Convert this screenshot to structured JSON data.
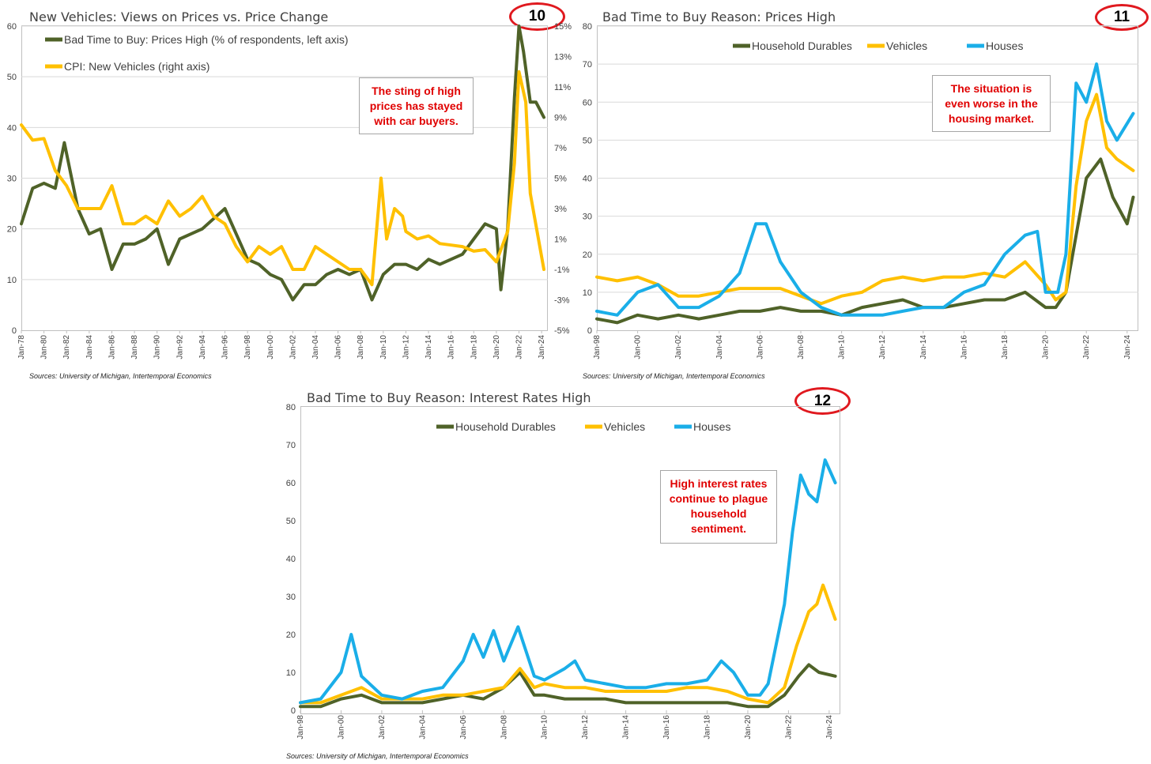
{
  "charts": [
    {
      "id": 10,
      "badge": "10",
      "title": "New Vehicles: Views on Prices vs. Price Change",
      "source": "Sources: University of Michigan, Intertemporal Economics",
      "callout": "The sting of high prices has stayed with car buyers.",
      "legend": [
        "Bad Time to Buy: Prices High (% of respondents, left axis)",
        "CPI: New Vehicles (right axis)"
      ],
      "left_ticks": [
        "0",
        "10",
        "20",
        "30",
        "40",
        "50",
        "60"
      ],
      "right_ticks": [
        "-5%",
        "-3%",
        "-1%",
        "1%",
        "3%",
        "5%",
        "7%",
        "9%",
        "11%",
        "13%",
        "15%"
      ],
      "x_ticks": [
        "Jan-78",
        "Jan-80",
        "Jan-82",
        "Jan-84",
        "Jan-86",
        "Jan-88",
        "Jan-90",
        "Jan-92",
        "Jan-94",
        "Jan-96",
        "Jan-98",
        "Jan-00",
        "Jan-02",
        "Jan-04",
        "Jan-06",
        "Jan-08",
        "Jan-10",
        "Jan-12",
        "Jan-14",
        "Jan-16",
        "Jan-18",
        "Jan-20",
        "Jan-22",
        "Jan-24"
      ]
    },
    {
      "id": 11,
      "badge": "11",
      "title": "Bad Time to Buy Reason: Prices High",
      "source": "Sources: University of Michigan, Intertemporal Economics",
      "callout": "The situation is even worse in the housing market.",
      "legend": [
        "Household Durables",
        "Vehicles",
        "Houses"
      ],
      "left_ticks": [
        "0",
        "10",
        "20",
        "30",
        "40",
        "50",
        "60",
        "70",
        "80"
      ],
      "x_ticks": [
        "Jan-98",
        "Jan-00",
        "Jan-02",
        "Jan-04",
        "Jan-06",
        "Jan-08",
        "Jan-10",
        "Jan-12",
        "Jan-14",
        "Jan-16",
        "Jan-18",
        "Jan-20",
        "Jan-22",
        "Jan-24"
      ]
    },
    {
      "id": 12,
      "badge": "12",
      "title": "Bad Time to Buy Reason: Interest Rates High",
      "source": "Sources: University of Michigan, Intertemporal Economics",
      "callout": "High interest rates continue to plague household sentiment.",
      "legend": [
        "Household Durables",
        "Vehicles",
        "Houses"
      ],
      "left_ticks": [
        "0",
        "10",
        "20",
        "30",
        "40",
        "50",
        "60",
        "70",
        "80"
      ],
      "x_ticks": [
        "Jan-98",
        "Jan-00",
        "Jan-02",
        "Jan-04",
        "Jan-06",
        "Jan-08",
        "Jan-10",
        "Jan-12",
        "Jan-14",
        "Jan-16",
        "Jan-18",
        "Jan-20",
        "Jan-22",
        "Jan-24"
      ]
    }
  ],
  "colors": {
    "durables": "#4f6228",
    "vehicles": "#ffc000",
    "houses": "#1aaee8",
    "badge_border": "#e0191f",
    "callout_text": "#e00000",
    "gridline": "#d9d9d9"
  },
  "chart_data": [
    {
      "type": "line",
      "title": "New Vehicles: Views on Prices vs. Price Change",
      "x_range": [
        "Jan-78",
        "Jan-24"
      ],
      "left_ylim": [
        0,
        60
      ],
      "right_ylim": [
        -5,
        15
      ],
      "right_unit": "%",
      "grid": true,
      "legend_position": "top-left",
      "series": [
        {
          "name": "Bad Time to Buy: Prices High (% of respondents, left axis)",
          "axis": "left",
          "x": [
            1978.0,
            1979.0,
            1980.0,
            1981.0,
            1981.8,
            1983.0,
            1984.0,
            1985.0,
            1986.0,
            1987.0,
            1988.0,
            1989.0,
            1990.0,
            1991.0,
            1992.0,
            1993.0,
            1994.0,
            1995.0,
            1996.0,
            1997.0,
            1998.0,
            1999.0,
            2000.0,
            2001.0,
            2002.0,
            2003.0,
            2004.0,
            2005.0,
            2006.0,
            2007.0,
            2008.0,
            2009.0,
            2010.0,
            2011.0,
            2012.0,
            2013.0,
            2014.0,
            2015.0,
            2016.0,
            2017.0,
            2018.0,
            2019.0,
            2020.0,
            2020.4,
            2021.0,
            2021.6,
            2022.0,
            2022.4,
            2023.0,
            2023.5,
            2024.2
          ],
          "y": [
            21,
            28,
            29,
            28,
            37,
            24,
            19,
            20,
            12,
            17,
            17,
            18,
            20,
            13,
            18,
            19,
            20,
            22,
            24,
            19,
            14,
            13,
            11,
            10,
            6,
            9,
            9,
            11,
            12,
            11,
            12,
            6,
            11,
            13,
            13,
            12,
            14,
            13,
            14,
            15,
            18,
            21,
            20,
            8,
            20,
            46,
            60,
            55,
            45,
            45,
            42
          ]
        },
        {
          "name": "CPI: New Vehicles (right axis)",
          "axis": "right",
          "x": [
            1978.0,
            1979.0,
            1980.0,
            1981.0,
            1982.0,
            1983.0,
            1984.0,
            1985.0,
            1986.0,
            1987.0,
            1988.0,
            1989.0,
            1990.0,
            1991.0,
            1992.0,
            1993.0,
            1994.0,
            1995.0,
            1996.0,
            1997.0,
            1998.0,
            1999.0,
            2000.0,
            2001.0,
            2002.0,
            2003.0,
            2004.0,
            2005.0,
            2006.0,
            2007.0,
            2008.0,
            2009.0,
            2009.8,
            2010.3,
            2011.0,
            2011.7,
            2012.0,
            2013.0,
            2014.0,
            2015.0,
            2016.0,
            2017.0,
            2018.0,
            2019.0,
            2020.0,
            2021.0,
            2021.6,
            2022.0,
            2022.6,
            2023.0,
            2023.6,
            2024.2
          ],
          "y": [
            8.5,
            7.5,
            7.6,
            5.5,
            4.5,
            3,
            3,
            3,
            4.5,
            2,
            2,
            2.5,
            2,
            3.5,
            2.5,
            3,
            3.8,
            2.5,
            2,
            0.5,
            -0.5,
            0.5,
            0,
            0.5,
            -1,
            -1,
            0.5,
            0,
            -0.5,
            -1,
            -1,
            -2,
            5,
            1,
            3,
            2.5,
            1.5,
            1,
            1.2,
            0.7,
            0.6,
            0.5,
            0.2,
            0.3,
            -0.5,
            1.5,
            6,
            12,
            10,
            4,
            1.5,
            -1
          ]
        }
      ]
    },
    {
      "type": "line",
      "title": "Bad Time to Buy Reason: Prices High",
      "x_range": [
        "Jan-98",
        "Jan-24"
      ],
      "ylim": [
        0,
        80
      ],
      "grid": true,
      "legend_position": "top",
      "series": [
        {
          "name": "Household Durables",
          "x": [
            1998.0,
            1999.0,
            2000.0,
            2001.0,
            2002.0,
            2003.0,
            2004.0,
            2005.0,
            2006.0,
            2007.0,
            2008.0,
            2009.0,
            2010.0,
            2011.0,
            2012.0,
            2013.0,
            2014.0,
            2015.0,
            2016.0,
            2017.0,
            2018.0,
            2019.0,
            2020.0,
            2020.5,
            2021.0,
            2021.5,
            2022.0,
            2022.7,
            2023.3,
            2024.0,
            2024.3
          ],
          "y": [
            3,
            2,
            4,
            3,
            4,
            3,
            4,
            5,
            5,
            6,
            5,
            5,
            4,
            6,
            7,
            8,
            6,
            6,
            7,
            8,
            8,
            10,
            6,
            6,
            10,
            25,
            40,
            45,
            35,
            28,
            35
          ]
        },
        {
          "name": "Vehicles",
          "x": [
            1998.0,
            1999.0,
            2000.0,
            2001.0,
            2002.0,
            2003.0,
            2004.0,
            2005.0,
            2006.0,
            2007.0,
            2008.0,
            2009.0,
            2010.0,
            2011.0,
            2012.0,
            2013.0,
            2014.0,
            2015.0,
            2016.0,
            2017.0,
            2018.0,
            2019.0,
            2020.0,
            2020.5,
            2021.0,
            2021.5,
            2022.0,
            2022.5,
            2023.0,
            2023.5,
            2024.3
          ],
          "y": [
            14,
            13,
            14,
            12,
            9,
            9,
            10,
            11,
            11,
            11,
            9,
            7,
            9,
            10,
            13,
            14,
            13,
            14,
            14,
            15,
            14,
            18,
            12,
            8,
            10,
            38,
            55,
            62,
            48,
            45,
            42
          ]
        },
        {
          "name": "Houses",
          "x": [
            1998.0,
            1999.0,
            2000.0,
            2001.0,
            2002.0,
            2003.0,
            2004.0,
            2005.0,
            2005.8,
            2006.3,
            2007.0,
            2008.0,
            2009.0,
            2010.0,
            2011.0,
            2012.0,
            2013.0,
            2014.0,
            2015.0,
            2016.0,
            2017.0,
            2018.0,
            2019.0,
            2019.6,
            2020.0,
            2020.6,
            2021.0,
            2021.5,
            2022.0,
            2022.5,
            2023.0,
            2023.5,
            2024.3
          ],
          "y": [
            5,
            4,
            10,
            12,
            6,
            6,
            9,
            15,
            28,
            28,
            18,
            10,
            6,
            4,
            4,
            4,
            5,
            6,
            6,
            10,
            12,
            20,
            25,
            26,
            10,
            10,
            20,
            65,
            60,
            70,
            55,
            50,
            57
          ]
        }
      ]
    },
    {
      "type": "line",
      "title": "Bad Time to Buy Reason: Interest Rates High",
      "x_range": [
        "Jan-98",
        "Jan-24"
      ],
      "ylim": [
        0,
        80
      ],
      "grid": false,
      "legend_position": "top",
      "series": [
        {
          "name": "Household Durables",
          "x": [
            1998.0,
            1999.0,
            2000.0,
            2001.0,
            2002.0,
            2003.0,
            2004.0,
            2005.0,
            2006.0,
            2007.0,
            2008.0,
            2008.8,
            2009.5,
            2010.0,
            2011.0,
            2012.0,
            2013.0,
            2014.0,
            2015.0,
            2016.0,
            2017.0,
            2018.0,
            2019.0,
            2020.0,
            2021.0,
            2021.8,
            2022.5,
            2023.0,
            2023.5,
            2024.3
          ],
          "y": [
            1,
            1,
            3,
            4,
            2,
            2,
            2,
            3,
            4,
            3,
            6,
            10,
            4,
            4,
            3,
            3,
            3,
            2,
            2,
            2,
            2,
            2,
            2,
            1,
            1,
            4,
            9,
            12,
            10,
            9
          ]
        },
        {
          "name": "Vehicles",
          "x": [
            1998.0,
            1999.0,
            2000.0,
            2001.0,
            2002.0,
            2003.0,
            2004.0,
            2005.0,
            2006.0,
            2007.0,
            2008.0,
            2008.8,
            2009.5,
            2010.0,
            2011.0,
            2012.0,
            2013.0,
            2014.0,
            2015.0,
            2016.0,
            2017.0,
            2018.0,
            2019.0,
            2020.0,
            2021.0,
            2021.8,
            2022.4,
            2023.0,
            2023.4,
            2023.7,
            2024.3
          ],
          "y": [
            2,
            2,
            4,
            6,
            3,
            3,
            3,
            4,
            4,
            5,
            6,
            11,
            6,
            7,
            6,
            6,
            5,
            5,
            5,
            5,
            6,
            6,
            5,
            3,
            2,
            6,
            17,
            26,
            28,
            33,
            24
          ]
        },
        {
          "name": "Houses",
          "x": [
            1998.0,
            1999.0,
            2000.0,
            2000.5,
            2001.0,
            2002.0,
            2003.0,
            2004.0,
            2005.0,
            2006.0,
            2006.5,
            2007.0,
            2007.5,
            2008.0,
            2008.7,
            2009.5,
            2010.0,
            2011.0,
            2011.5,
            2012.0,
            2013.0,
            2014.0,
            2015.0,
            2016.0,
            2017.0,
            2018.0,
            2018.7,
            2019.3,
            2020.0,
            2020.6,
            2021.0,
            2021.8,
            2022.2,
            2022.6,
            2023.0,
            2023.4,
            2023.8,
            2024.3
          ],
          "y": [
            2,
            3,
            10,
            20,
            9,
            4,
            3,
            5,
            6,
            13,
            20,
            14,
            21,
            13,
            22,
            9,
            8,
            11,
            13,
            8,
            7,
            6,
            6,
            7,
            7,
            8,
            13,
            10,
            4,
            4,
            7,
            28,
            47,
            62,
            57,
            55,
            66,
            60
          ]
        }
      ]
    }
  ]
}
